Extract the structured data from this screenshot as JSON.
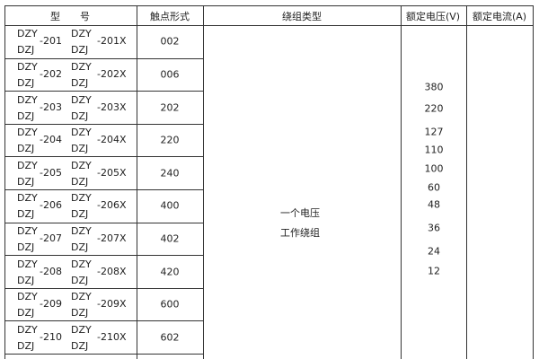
{
  "headers": {
    "model": "型　　号",
    "contact": "触点形式",
    "winding": "绕组类型",
    "voltage": "额定电压(V)",
    "current": "额定电流(A)"
  },
  "rows": [
    {
      "prefix1": "DZY",
      "prefix2": "DZJ",
      "num": "-201",
      "prefix3": "DZY",
      "prefix4": "DZJ",
      "numx": "-201X",
      "contact": "002"
    },
    {
      "prefix1": "DZY",
      "prefix2": "DZJ",
      "num": "-202",
      "prefix3": "DZY",
      "prefix4": "DZJ",
      "numx": "-202X",
      "contact": "006"
    },
    {
      "prefix1": "DZY",
      "prefix2": "DZJ",
      "num": "-203",
      "prefix3": "DZY",
      "prefix4": "DZJ",
      "numx": "-203X",
      "contact": "202"
    },
    {
      "prefix1": "DZY",
      "prefix2": "DZJ",
      "num": "-204",
      "prefix3": "DZY",
      "prefix4": "DZJ",
      "numx": "-204X",
      "contact": "220"
    },
    {
      "prefix1": "DZY",
      "prefix2": "DZJ",
      "num": "-205",
      "prefix3": "DZY",
      "prefix4": "DZJ",
      "numx": "-205X",
      "contact": "240"
    },
    {
      "prefix1": "DZY",
      "prefix2": "DZJ",
      "num": "-206",
      "prefix3": "DZY",
      "prefix4": "DZJ",
      "numx": "-206X",
      "contact": "400"
    },
    {
      "prefix1": "DZY",
      "prefix2": "DZJ",
      "num": "-207",
      "prefix3": "DZY",
      "prefix4": "DZJ",
      "numx": "-207X",
      "contact": "402"
    },
    {
      "prefix1": "DZY",
      "prefix2": "DZJ",
      "num": "-208",
      "prefix3": "DZY",
      "prefix4": "DZJ",
      "numx": "-208X",
      "contact": "420"
    },
    {
      "prefix1": "DZY",
      "prefix2": "DZJ",
      "num": "-209",
      "prefix3": "DZY",
      "prefix4": "DZJ",
      "numx": "-209X",
      "contact": "600"
    },
    {
      "prefix1": "DZY",
      "prefix2": "DZJ",
      "num": "-210",
      "prefix3": "DZY",
      "prefix4": "DZJ",
      "numx": "-210X",
      "contact": "602"
    }
  ],
  "winding": [
    "一个电压",
    "工作绕组"
  ],
  "voltages": [
    "380",
    "220",
    "127",
    "110",
    "100",
    "60",
    "48",
    "36",
    "24",
    "12"
  ]
}
